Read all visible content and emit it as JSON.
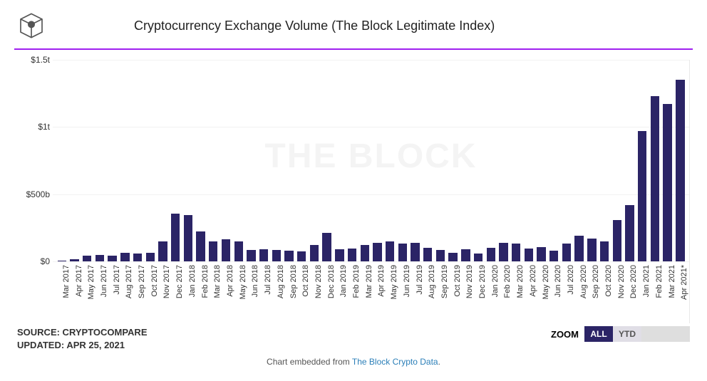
{
  "header": {
    "title": "Cryptocurrency Exchange Volume (The Block Legitimate Index)"
  },
  "colors": {
    "accent_purple": "#a020f0",
    "bar_color": "#2b2466",
    "zoom_active_bg": "#2b2466",
    "zoom_inactive_bg": "#e0dee6",
    "zoom_blank_bg": "#dedede",
    "link_color": "#2b7fb8"
  },
  "watermark": "THE BLOCK",
  "chart": {
    "type": "bar",
    "y_axis": {
      "min": 0,
      "max": 1500,
      "ticks": [
        {
          "value": 0,
          "label": "$0"
        },
        {
          "value": 500,
          "label": "$500b"
        },
        {
          "value": 1000,
          "label": "$1t"
        },
        {
          "value": 1500,
          "label": "$1.5t"
        }
      ]
    },
    "data": [
      {
        "label": "Mar 2017",
        "value": 8
      },
      {
        "label": "Apr 2017",
        "value": 15
      },
      {
        "label": "May 2017",
        "value": 45
      },
      {
        "label": "Jun 2017",
        "value": 50
      },
      {
        "label": "Jul 2017",
        "value": 40
      },
      {
        "label": "Aug 2017",
        "value": 65
      },
      {
        "label": "Sep 2017",
        "value": 60
      },
      {
        "label": "Oct 2017",
        "value": 62
      },
      {
        "label": "Nov 2017",
        "value": 150
      },
      {
        "label": "Dec 2017",
        "value": 355
      },
      {
        "label": "Jan 2018",
        "value": 345
      },
      {
        "label": "Feb 2018",
        "value": 225
      },
      {
        "label": "Mar 2018",
        "value": 150
      },
      {
        "label": "Apr 2018",
        "value": 165
      },
      {
        "label": "May 2018",
        "value": 150
      },
      {
        "label": "Jun 2018",
        "value": 85
      },
      {
        "label": "Jul 2018",
        "value": 90
      },
      {
        "label": "Aug 2018",
        "value": 85
      },
      {
        "label": "Sep 2018",
        "value": 80
      },
      {
        "label": "Oct 2018",
        "value": 75
      },
      {
        "label": "Nov 2018",
        "value": 120
      },
      {
        "label": "Dec 2018",
        "value": 210
      },
      {
        "label": "Jan 2019",
        "value": 90
      },
      {
        "label": "Feb 2019",
        "value": 95
      },
      {
        "label": "Mar 2019",
        "value": 120
      },
      {
        "label": "Apr 2019",
        "value": 140
      },
      {
        "label": "May 2019",
        "value": 150
      },
      {
        "label": "Jun 2019",
        "value": 130
      },
      {
        "label": "Jul 2019",
        "value": 140
      },
      {
        "label": "Aug 2019",
        "value": 100
      },
      {
        "label": "Sep 2019",
        "value": 85
      },
      {
        "label": "Oct 2019",
        "value": 65
      },
      {
        "label": "Nov 2019",
        "value": 90
      },
      {
        "label": "Dec 2019",
        "value": 60
      },
      {
        "label": "Jan 2020",
        "value": 100
      },
      {
        "label": "Feb 2020",
        "value": 140
      },
      {
        "label": "Mar 2020",
        "value": 130
      },
      {
        "label": "Apr 2020",
        "value": 95
      },
      {
        "label": "May 2020",
        "value": 105
      },
      {
        "label": "Jun 2020",
        "value": 80
      },
      {
        "label": "Jul 2020",
        "value": 130
      },
      {
        "label": "Aug 2020",
        "value": 190
      },
      {
        "label": "Sep 2020",
        "value": 170
      },
      {
        "label": "Oct 2020",
        "value": 150
      },
      {
        "label": "Nov 2020",
        "value": 310
      },
      {
        "label": "Dec 2020",
        "value": 420
      },
      {
        "label": "Jan 2021",
        "value": 970
      },
      {
        "label": "Feb 2021",
        "value": 1230
      },
      {
        "label": "Mar 2021",
        "value": 1170
      },
      {
        "label": "Apr 2021*",
        "value": 1350
      }
    ]
  },
  "footer": {
    "source_label": "SOURCE: CRYPTOCOMPARE",
    "updated_label": "UPDATED: APR 25, 2021"
  },
  "zoom": {
    "label": "ZOOM",
    "buttons": [
      {
        "text": "ALL",
        "active": true
      },
      {
        "text": "YTD",
        "active": false
      },
      {
        "text": "",
        "active": false,
        "blank": true
      },
      {
        "text": "",
        "active": false,
        "blank": true
      }
    ]
  },
  "attribution": {
    "prefix": "Chart embedded from ",
    "link_text": "The Block Crypto Data",
    "suffix": "."
  }
}
